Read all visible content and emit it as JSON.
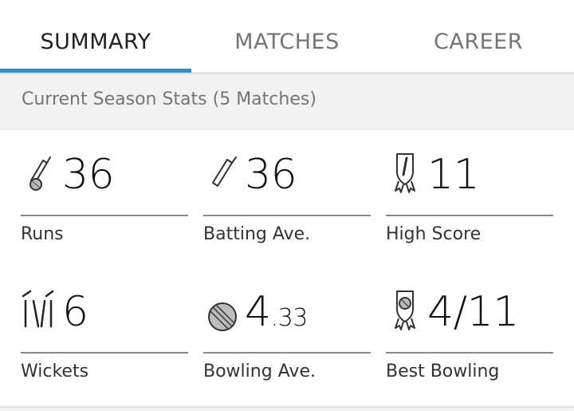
{
  "tabs": [
    {
      "label": "SUMMARY",
      "active": true
    },
    {
      "label": "MATCHES",
      "active": false
    },
    {
      "label": "CAREER",
      "active": false
    }
  ],
  "accent_color": "#2a8fd6",
  "section_title": "Current Season Stats (5 Matches)",
  "stats": [
    {
      "icon": "cricket-bat-ball-icon",
      "value": "36",
      "label": "Runs"
    },
    {
      "icon": "cricket-bat-icon",
      "value": "36",
      "label": "Batting Ave."
    },
    {
      "icon": "bat-shield-award-icon",
      "value": "11",
      "label": "High Score"
    },
    {
      "icon": "wickets-stumps-icon",
      "value": "6",
      "label": "Wickets"
    },
    {
      "icon": "cricket-ball-icon",
      "value_main": "4",
      "value_dec": ".33",
      "label": "Bowling Ave."
    },
    {
      "icon": "ball-shield-award-icon",
      "value": "4/11",
      "label": "Best Bowling"
    }
  ]
}
